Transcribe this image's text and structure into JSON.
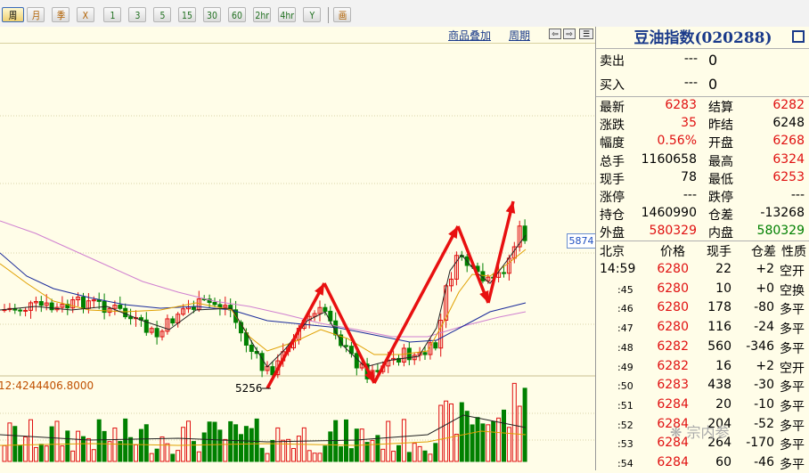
{
  "toolbar": [
    {
      "label": "周",
      "active": true,
      "color": "normal"
    },
    {
      "label": "月",
      "color": "orange"
    },
    {
      "label": "季",
      "color": "orange"
    },
    {
      "label": "X",
      "color": "orange"
    },
    {
      "label": "1",
      "color": "green"
    },
    {
      "label": "3",
      "color": "green"
    },
    {
      "label": "5",
      "color": "green"
    },
    {
      "label": "15",
      "color": "green"
    },
    {
      "label": "30",
      "color": "green"
    },
    {
      "label": "60",
      "color": "green"
    },
    {
      "label": "2hr",
      "color": "green"
    },
    {
      "label": "4hr",
      "color": "green"
    },
    {
      "label": "Y",
      "color": "green"
    },
    {
      "label": "画",
      "color": "orange"
    }
  ],
  "chart_header": {
    "overlay": "商品叠加",
    "period": "周期"
  },
  "chart": {
    "price_tag": "5874",
    "low_label": "5256",
    "volume_label": "12:4244406.8000"
  },
  "quote": {
    "title": "豆油指数(020288)",
    "sell_label": "卖出",
    "sell_price": "---",
    "sell_qty": "0",
    "buy_label": "买入",
    "buy_price": "---",
    "buy_qty": "0",
    "stats": [
      {
        "l1": "最新",
        "v1": "6283",
        "c1": "red",
        "l2": "结算",
        "v2": "6282",
        "c2": "red"
      },
      {
        "l1": "涨跌",
        "v1": "35",
        "c1": "red",
        "l2": "昨结",
        "v2": "6248",
        "c2": "black"
      },
      {
        "l1": "幅度",
        "v1": "0.56%",
        "c1": "red",
        "l2": "开盘",
        "v2": "6268",
        "c2": "red"
      },
      {
        "l1": "总手",
        "v1": "1160658",
        "c1": "black",
        "l2": "最高",
        "v2": "6324",
        "c2": "red"
      },
      {
        "l1": "现手",
        "v1": "78",
        "c1": "black",
        "l2": "最低",
        "v2": "6253",
        "c2": "red"
      },
      {
        "l1": "涨停",
        "v1": "---",
        "c1": "black",
        "l2": "跌停",
        "v2": "---",
        "c2": "black"
      },
      {
        "l1": "持仓",
        "v1": "1460990",
        "c1": "black",
        "l2": "仓差",
        "v2": "-13268",
        "c2": "black"
      },
      {
        "l1": "外盘",
        "v1": "580329",
        "c1": "red",
        "l2": "内盘",
        "v2": "580329",
        "c2": "green"
      }
    ],
    "tick_headers": [
      "北京",
      "价格",
      "现手",
      "仓差",
      "性质"
    ],
    "ticks": [
      {
        "time": "14:59",
        "price": "6280",
        "qty": "22",
        "diff": "+2",
        "type": "空开"
      },
      {
        "time": ":45",
        "price": "6280",
        "qty": "10",
        "diff": "+0",
        "type": "空换"
      },
      {
        "time": ":46",
        "price": "6280",
        "qty": "178",
        "diff": "-80",
        "type": "多平"
      },
      {
        "time": ":47",
        "price": "6280",
        "qty": "116",
        "diff": "-24",
        "type": "多平"
      },
      {
        "time": ":48",
        "price": "6282",
        "qty": "560",
        "diff": "-346",
        "type": "多平"
      },
      {
        "time": ":49",
        "price": "6282",
        "qty": "16",
        "diff": "+2",
        "type": "空开"
      },
      {
        "time": ":50",
        "price": "6283",
        "qty": "438",
        "diff": "-30",
        "type": "多平"
      },
      {
        "time": ":51",
        "price": "6284",
        "qty": "20",
        "diff": "-10",
        "type": "多平"
      },
      {
        "time": ":52",
        "price": "6284",
        "qty": "204",
        "diff": "-52",
        "type": "多平"
      },
      {
        "time": ":53",
        "price": "6284",
        "qty": "264",
        "diff": "-170",
        "type": "多平"
      },
      {
        "time": ":54",
        "price": "6284",
        "qty": "60",
        "diff": "-46",
        "type": "多平"
      }
    ]
  },
  "watermark": "宗内参",
  "colors": {
    "up": "#e01010",
    "down": "#008000",
    "bg": "#fffde8",
    "ma5": "#222222",
    "ma10": "#e0a000",
    "ma20": "#1a2a9a",
    "ma60": "#d080d0",
    "arrow": "#e81010"
  }
}
